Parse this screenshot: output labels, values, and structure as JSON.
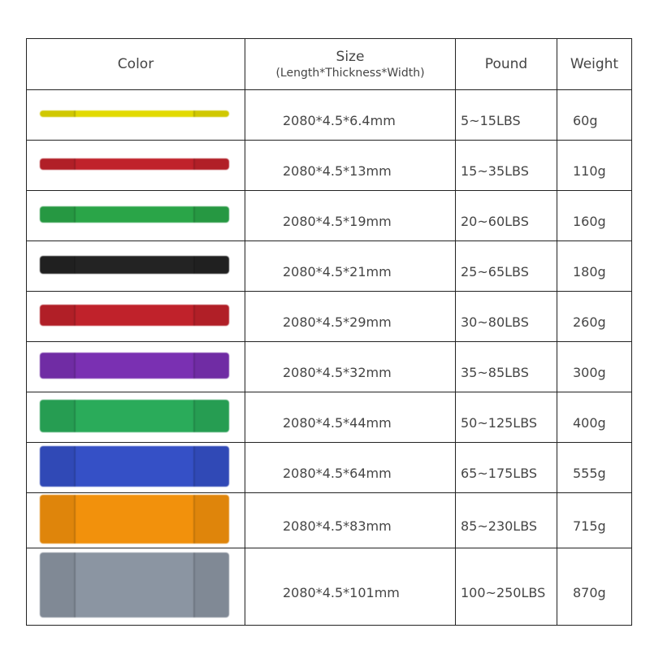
{
  "header": {
    "color": "Color",
    "size": "Size",
    "size_sub": "(Length*Thickness*Width)",
    "pound": "Pound",
    "weight": "Weight"
  },
  "rows": [
    {
      "band_color": "#e2da00",
      "size": "2080*4.5*6.4mm",
      "pound": "5~15LBS",
      "weight": "60g"
    },
    {
      "band_color": "#c0222b",
      "size": "2080*4.5*13mm",
      "pound": "15~35LBS",
      "weight": "110g"
    },
    {
      "band_color": "#2aa548",
      "size": "2080*4.5*19mm",
      "pound": "20~60LBS",
      "weight": "160g"
    },
    {
      "band_color": "#232323",
      "size": "2080*4.5*21mm",
      "pound": "25~65LBS",
      "weight": "180g"
    },
    {
      "band_color": "#c0222b",
      "size": "2080*4.5*29mm",
      "pound": "30~80LBS",
      "weight": "260g"
    },
    {
      "band_color": "#7a30b2",
      "size": "2080*4.5*32mm",
      "pound": "35~85LBS",
      "weight": "300g"
    },
    {
      "band_color": "#2aab5a",
      "size": "2080*4.5*44mm",
      "pound": "50~125LBS",
      "weight": "400g"
    },
    {
      "band_color": "#3550c6",
      "size": "2080*4.5*64mm",
      "pound": "65~175LBS",
      "weight": "555g"
    },
    {
      "band_color": "#f2910c",
      "size": "2080*4.5*83mm",
      "pound": "85~230LBS",
      "weight": "715g"
    },
    {
      "band_color": "#8b95a2",
      "size": "2080*4.5*101mm",
      "pound": "100~250LBS",
      "weight": "870g"
    }
  ]
}
